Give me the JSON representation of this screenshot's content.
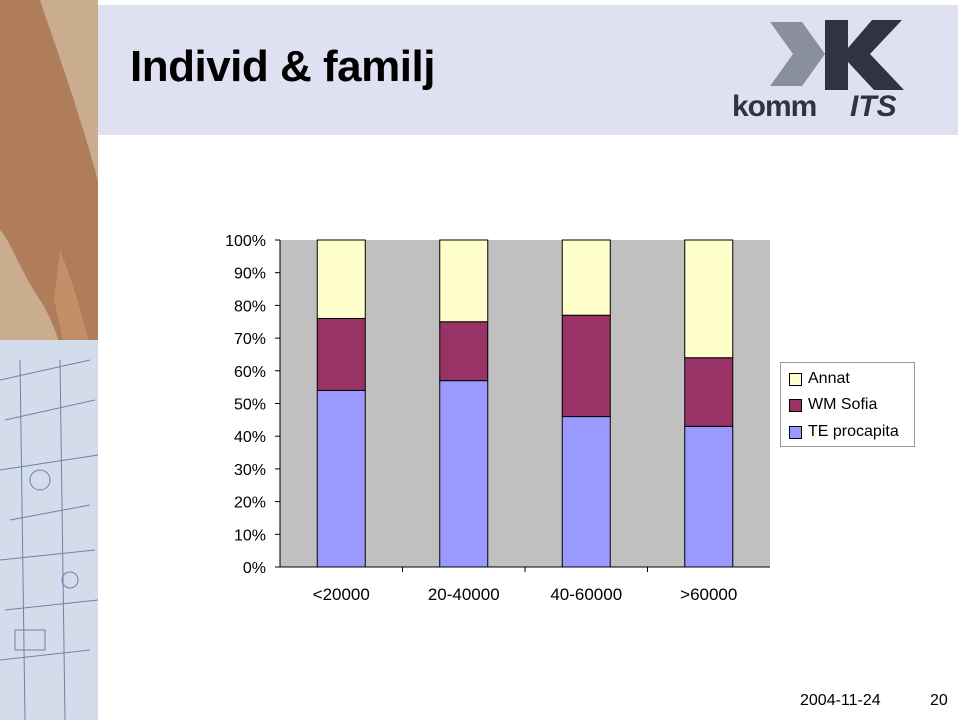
{
  "slide": {
    "title": "Individ & familj",
    "date": "2004-11-24",
    "page_number": "20",
    "logo_text": "KOMMITS"
  },
  "colors": {
    "te_procapita": "#9999ff",
    "wm_sofia": "#993366",
    "annat": "#ffffcc",
    "plot_background": "#c0c0c0",
    "title_background": "#dfe1f2"
  },
  "chart_data": {
    "type": "bar",
    "stacked": "percent",
    "categories": [
      "<20000",
      "20-40000",
      "40-60000",
      ">60000"
    ],
    "series": [
      {
        "name": "TE procapita",
        "values": [
          54,
          57,
          46,
          43
        ]
      },
      {
        "name": "WM Sofia",
        "values": [
          22,
          18,
          31,
          21
        ]
      },
      {
        "name": "Annat",
        "values": [
          24,
          25,
          23,
          36
        ]
      }
    ],
    "y_ticks": [
      "0%",
      "10%",
      "20%",
      "30%",
      "40%",
      "50%",
      "60%",
      "70%",
      "80%",
      "90%",
      "100%"
    ],
    "ylim": [
      0,
      100
    ],
    "legend": [
      "Annat",
      "WM Sofia",
      "TE procapita"
    ],
    "legend_position": "right",
    "grid": false
  }
}
